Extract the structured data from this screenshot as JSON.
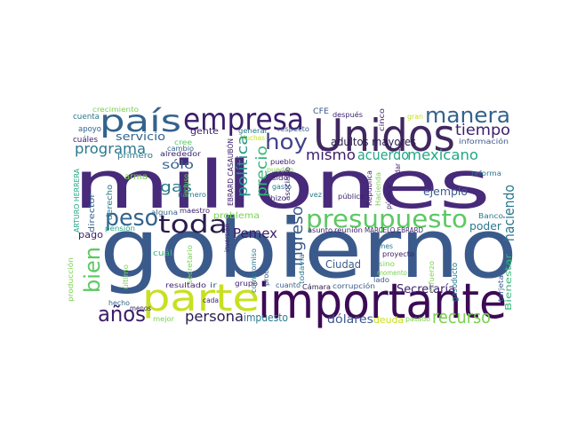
{
  "words": [
    {
      "text": "gobierno",
      "color": "#3b5a8c"
    },
    {
      "text": "millones",
      "color": "#472a7a"
    },
    {
      "text": "importante",
      "color": "#3d0b55"
    },
    {
      "text": "Unidos",
      "color": "#40285f"
    },
    {
      "text": "parte",
      "color": "#c8e020"
    },
    {
      "text": "empresa",
      "color": "#3b1d6a"
    },
    {
      "text": "país",
      "color": "#33638d"
    },
    {
      "text": "manera",
      "color": "#33638d"
    },
    {
      "text": "presupuesto",
      "color": "#5cc863"
    },
    {
      "text": "toda",
      "color": "#2a1b4e"
    },
    {
      "text": "peso",
      "color": "#33638d"
    },
    {
      "text": "hoy",
      "color": "#414487"
    },
    {
      "text": "bien",
      "color": "#5cc863"
    },
    {
      "text": "años",
      "color": "#3b1d6a"
    },
    {
      "text": "recurso",
      "color": "#7ad151"
    },
    {
      "text": "programa",
      "color": "#2a788e"
    },
    {
      "text": "tiempo",
      "color": "#3b1d6a"
    },
    {
      "text": "mexicano",
      "color": "#22a884"
    },
    {
      "text": "acuerdo",
      "color": "#22a884"
    },
    {
      "text": "mismo",
      "color": "#3b1d6a"
    },
    {
      "text": "persona",
      "color": "#2a1b4e"
    },
    {
      "text": "Pemex",
      "color": "#3b1d6a"
    },
    {
      "text": "gas",
      "color": "#2a788e"
    },
    {
      "text": "ingreso",
      "color": "#3b5a8c"
    },
    {
      "text": "precio",
      "color": "#35b779"
    },
    {
      "text": "política",
      "color": "#1f968b"
    },
    {
      "text": "haciendo",
      "color": "#2a788e"
    },
    {
      "text": "Secretaría",
      "color": "#3b1d6a"
    },
    {
      "text": "dólares",
      "color": "#3b5a8c"
    },
    {
      "text": "impuesto",
      "color": "#2a788e"
    },
    {
      "text": "sólo",
      "color": "#33638d"
    },
    {
      "text": "servicio",
      "color": "#33638d"
    },
    {
      "text": "adultos mayores",
      "color": "#2a1b4e"
    },
    {
      "text": "ejemplo",
      "color": "#3b5a8c"
    },
    {
      "text": "Ciudad",
      "color": "#3b5a8c"
    },
    {
      "text": "deuda",
      "color": "#c8e020"
    },
    {
      "text": "poder",
      "color": "#2a788e"
    },
    {
      "text": "Bienestar",
      "color": "#35b779"
    },
    {
      "text": "pago",
      "color": "#3b1d6a"
    },
    {
      "text": "gente",
      "color": "#3b1d6a"
    },
    {
      "text": "problema",
      "color": "#7ad151"
    },
    {
      "text": "arma",
      "color": "#7ad151"
    },
    {
      "text": "cuál",
      "color": "#35b779"
    },
    {
      "text": "director",
      "color": "#33638d"
    },
    {
      "text": "apoyo",
      "color": "#33638d"
    },
    {
      "text": "cuenta",
      "color": "#2a788e"
    },
    {
      "text": "crecimiento",
      "color": "#7ad151"
    },
    {
      "text": "cuáles",
      "color": "#3b1d6a"
    },
    {
      "text": "cambio",
      "color": "#33638d"
    },
    {
      "text": "primero",
      "color": "#2a788e"
    },
    {
      "text": "alrededor",
      "color": "#3b1d6a"
    },
    {
      "text": "cree",
      "color": "#5cc863"
    },
    {
      "text": "número",
      "color": "#2a788e"
    },
    {
      "text": "alguna",
      "color": "#33638d"
    },
    {
      "text": "maestro",
      "color": "#3b1d6a"
    },
    {
      "text": "derecho",
      "color": "#2a788e"
    },
    {
      "text": "pensión",
      "color": "#22a884"
    },
    {
      "text": "ARTURO HERRERA",
      "color": "#22a884"
    },
    {
      "text": "producción",
      "color": "#7ad151"
    },
    {
      "text": "último",
      "color": "#7ad151"
    },
    {
      "text": "hecho",
      "color": "#33638d"
    },
    {
      "text": "menos",
      "color": "#2a1b4e"
    },
    {
      "text": "cada",
      "color": "#3b1d6a"
    },
    {
      "text": "mejor",
      "color": "#7ad151"
    },
    {
      "text": "resultado",
      "color": "#3b1d6a"
    },
    {
      "text": "grupo",
      "color": "#3b1d6a"
    },
    {
      "text": "cuanto",
      "color": "#3b5a8c"
    },
    {
      "text": "Cámara",
      "color": "#2a1b4e"
    },
    {
      "text": "corrupción",
      "color": "#3b5a8c"
    },
    {
      "text": "lado",
      "color": "#3b5a8c"
    },
    {
      "text": "gasoducto",
      "color": "#2a788e"
    },
    {
      "text": "tarjeta",
      "color": "#3b5a8c"
    },
    {
      "text": "pasado",
      "color": "#7ad151"
    },
    {
      "text": "proceso",
      "color": "#3b5a8c"
    },
    {
      "text": "todavía",
      "color": "#2a788e"
    },
    {
      "text": "compromiso",
      "color": "#2a788e"
    },
    {
      "text": "secretario",
      "color": "#7ad151"
    },
    {
      "text": "ir",
      "color": "#3b5a8c"
    },
    {
      "text": "hizo",
      "color": "#3b1d6a"
    },
    {
      "text": "vez",
      "color": "#2a788e"
    },
    {
      "text": "público",
      "color": "#3b1d6a"
    },
    {
      "text": "sino",
      "color": "#7ad151"
    },
    {
      "text": "momento",
      "color": "#7ad151"
    },
    {
      "text": "esfuerzo",
      "color": "#7ad151"
    },
    {
      "text": "mes",
      "color": "#2a788e"
    },
    {
      "text": "proyecto",
      "color": "#3b1d6a"
    },
    {
      "text": "asunto",
      "color": "#3b1d6a"
    },
    {
      "text": "reunión",
      "color": "#3b1d6a"
    },
    {
      "text": "MARCELO EBRARD",
      "color": "#3b1d6a"
    },
    {
      "text": "Banco",
      "color": "#2a788e"
    },
    {
      "text": "reforma",
      "color": "#2a788e"
    },
    {
      "text": "información",
      "color": "#3b5a8c"
    },
    {
      "text": "gran",
      "color": "#c8e020"
    },
    {
      "text": "cinco",
      "color": "#3b1d6a"
    },
    {
      "text": "después",
      "color": "#3b1d6a"
    },
    {
      "text": "CFE",
      "color": "#3b5a8c"
    },
    {
      "text": "respecto",
      "color": "#3b5a8c"
    },
    {
      "text": "general",
      "color": "#2a788e"
    },
    {
      "text": "Muchas",
      "color": "#c8e020"
    },
    {
      "text": "pueblo",
      "color": "#3b1d6a"
    },
    {
      "text": "pueden",
      "color": "#7ad151"
    },
    {
      "text": "sido",
      "color": "#3b1d6a"
    },
    {
      "text": "gasto",
      "color": "#2a788e"
    },
    {
      "text": "asociado",
      "color": "#3b1d6a"
    },
    {
      "text": "República",
      "color": "#3b1d6a"
    },
    {
      "text": "Hacienda",
      "color": "#7ad151"
    },
    {
      "text": "pública",
      "color": "#3b1d6a"
    },
    {
      "text": "dar",
      "color": "#3b1d6a"
    },
    {
      "text": "incluso",
      "color": "#7ad151"
    },
    {
      "text": "EBRARD CASAUBÓN",
      "color": "#3b1d6a"
    },
    {
      "text": "inversión",
      "color": "#3b1d6a"
    }
  ]
}
